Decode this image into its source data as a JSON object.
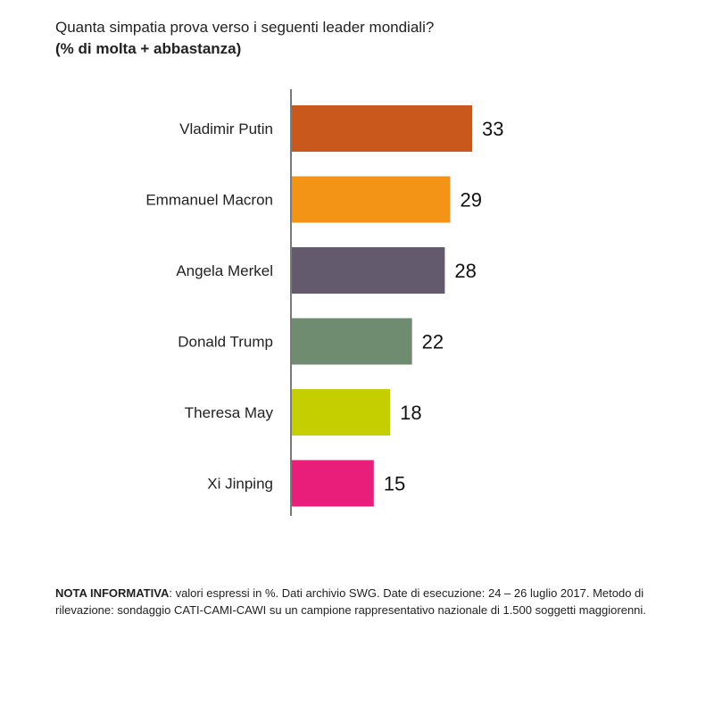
{
  "chart_data": {
    "type": "bar",
    "orientation": "horizontal",
    "title": "Quanta simpatia prova verso i seguenti leader mondiali?",
    "subtitle": "(% di molta + abbastanza)",
    "categories": [
      "Vladimir Putin",
      "Emmanuel Macron",
      "Angela Merkel",
      "Donald Trump",
      "Theresa May",
      "Xi Jinping"
    ],
    "values": [
      33,
      29,
      28,
      22,
      18,
      15
    ],
    "colors": [
      "#C8581B",
      "#F39416",
      "#635A6E",
      "#6F8B70",
      "#C5CF00",
      "#E91E7A"
    ],
    "value_labels": [
      "33",
      "29",
      "28",
      "22",
      "18",
      "15"
    ],
    "xlim": [
      0,
      33
    ],
    "grid": false,
    "legend": "none"
  },
  "note": {
    "label": "NOTA INFORMATIVA",
    "text": ": valori espressi in %. Dati archivio SWG. Date di esecuzione: 24 – 26 luglio 2017. Metodo di rilevazione: sondaggio CATI-CAMI-CAWI su un campione rappresentativo nazionale di 1.500 soggetti maggiorenni."
  }
}
